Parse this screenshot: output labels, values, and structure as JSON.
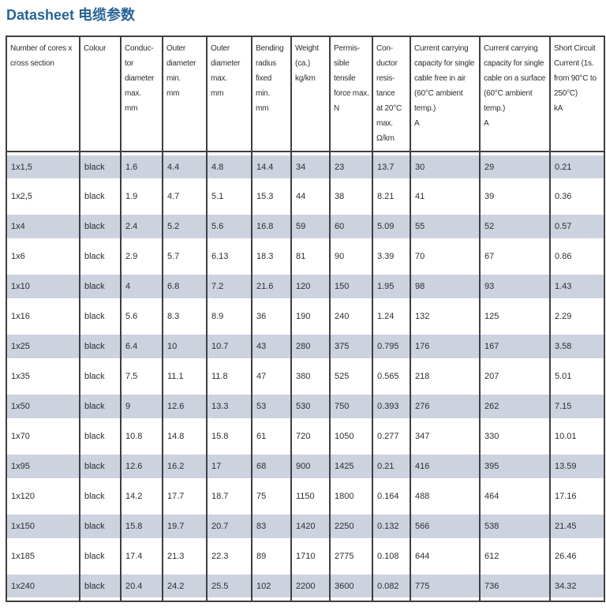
{
  "page": {
    "title": "Datasheet 电缆参数"
  },
  "colors": {
    "title": "#2a6496",
    "row_shade": "#cdd2df",
    "border": "#3f3f3f"
  },
  "table": {
    "columns": [
      "Number of cores x\ncross section",
      "Colour",
      "Conduc-\ntor\ndiameter\nmax.\nmm",
      "Outer\ndiameter\nmin.\nmm",
      "Outer\ndiameter\nmax.\nmm",
      "Bending\nradius\nfixed\nmin.\nmm",
      "Weight\n(ca.)\nkg/km",
      "Permis-\nsible\ntensile\nforce max.\nN",
      "Con-\nductor\nresis-\ntance\nat 20°C\nmax.\nΩ/km",
      "Current carrying\ncapacity for single\ncable free in air\n(60°C ambient\ntemp.)\nA",
      "Current carrying\ncapacity for single\ncable on a surface\n(60°C ambient\ntemp.)\nA",
      "Short Circuit\nCurrent (1s.\nfrom 90°C to\n250°C)\nkA"
    ],
    "rows": [
      [
        "1x1,5",
        "black",
        "1.6",
        "4.4",
        "4.8",
        "14.4",
        "34",
        "23",
        "13.7",
        "30",
        "29",
        "0.21"
      ],
      [
        "1x2,5",
        "black",
        "1.9",
        "4.7",
        "5.1",
        "15.3",
        "44",
        "38",
        "8.21",
        "41",
        "39",
        "0.36"
      ],
      [
        "1x4",
        "black",
        "2.4",
        "5.2",
        "5.6",
        "16.8",
        "59",
        "60",
        "5.09",
        "55",
        "52",
        "0.57"
      ],
      [
        "1x6",
        "black",
        "2.9",
        "5.7",
        "6.13",
        "18.3",
        "81",
        "90",
        "3.39",
        "70",
        "67",
        "0.86"
      ],
      [
        "1x10",
        "black",
        "4",
        "6.8",
        "7.2",
        "21.6",
        "120",
        "150",
        "1.95",
        "98",
        "93",
        "1.43"
      ],
      [
        "1x16",
        "black",
        "5.6",
        "8.3",
        "8.9",
        "36",
        "190",
        "240",
        "1.24",
        "132",
        "125",
        "2.29"
      ],
      [
        "1x25",
        "black",
        "6.4",
        "10",
        "10.7",
        "43",
        "280",
        "375",
        "0.795",
        "176",
        "167",
        "3.58"
      ],
      [
        "1x35",
        "black",
        "7.5",
        "11.1",
        "11.8",
        "47",
        "380",
        "525",
        "0.565",
        "218",
        "207",
        "5.01"
      ],
      [
        "1x50",
        "black",
        "9",
        "12.6",
        "13.3",
        "53",
        "530",
        "750",
        "0.393",
        "276",
        "262",
        "7.15"
      ],
      [
        "1x70",
        "black",
        "10.8",
        "14.8",
        "15.8",
        "61",
        "720",
        "1050",
        "0.277",
        "347",
        "330",
        "10.01"
      ],
      [
        "1x95",
        "black",
        "12.6",
        "16.2",
        "17",
        "68",
        "900",
        "1425",
        "0.21",
        "416",
        "395",
        "13.59"
      ],
      [
        "1x120",
        "black",
        "14.2",
        "17.7",
        "18.7",
        "75",
        "1150",
        "1800",
        "0.164",
        "488",
        "464",
        "17.16"
      ],
      [
        "1x150",
        "black",
        "15.8",
        "19.7",
        "20.7",
        "83",
        "1420",
        "2250",
        "0.132",
        "566",
        "538",
        "21.45"
      ],
      [
        "1x185",
        "black",
        "17.4",
        "21.3",
        "22.3",
        "89",
        "1710",
        "2775",
        "0.108",
        "644",
        "612",
        "26.46"
      ],
      [
        "1x240",
        "black",
        "20.4",
        "24.2",
        "25.5",
        "102",
        "2200",
        "3600",
        "0.082",
        "775",
        "736",
        "34.32"
      ]
    ]
  }
}
